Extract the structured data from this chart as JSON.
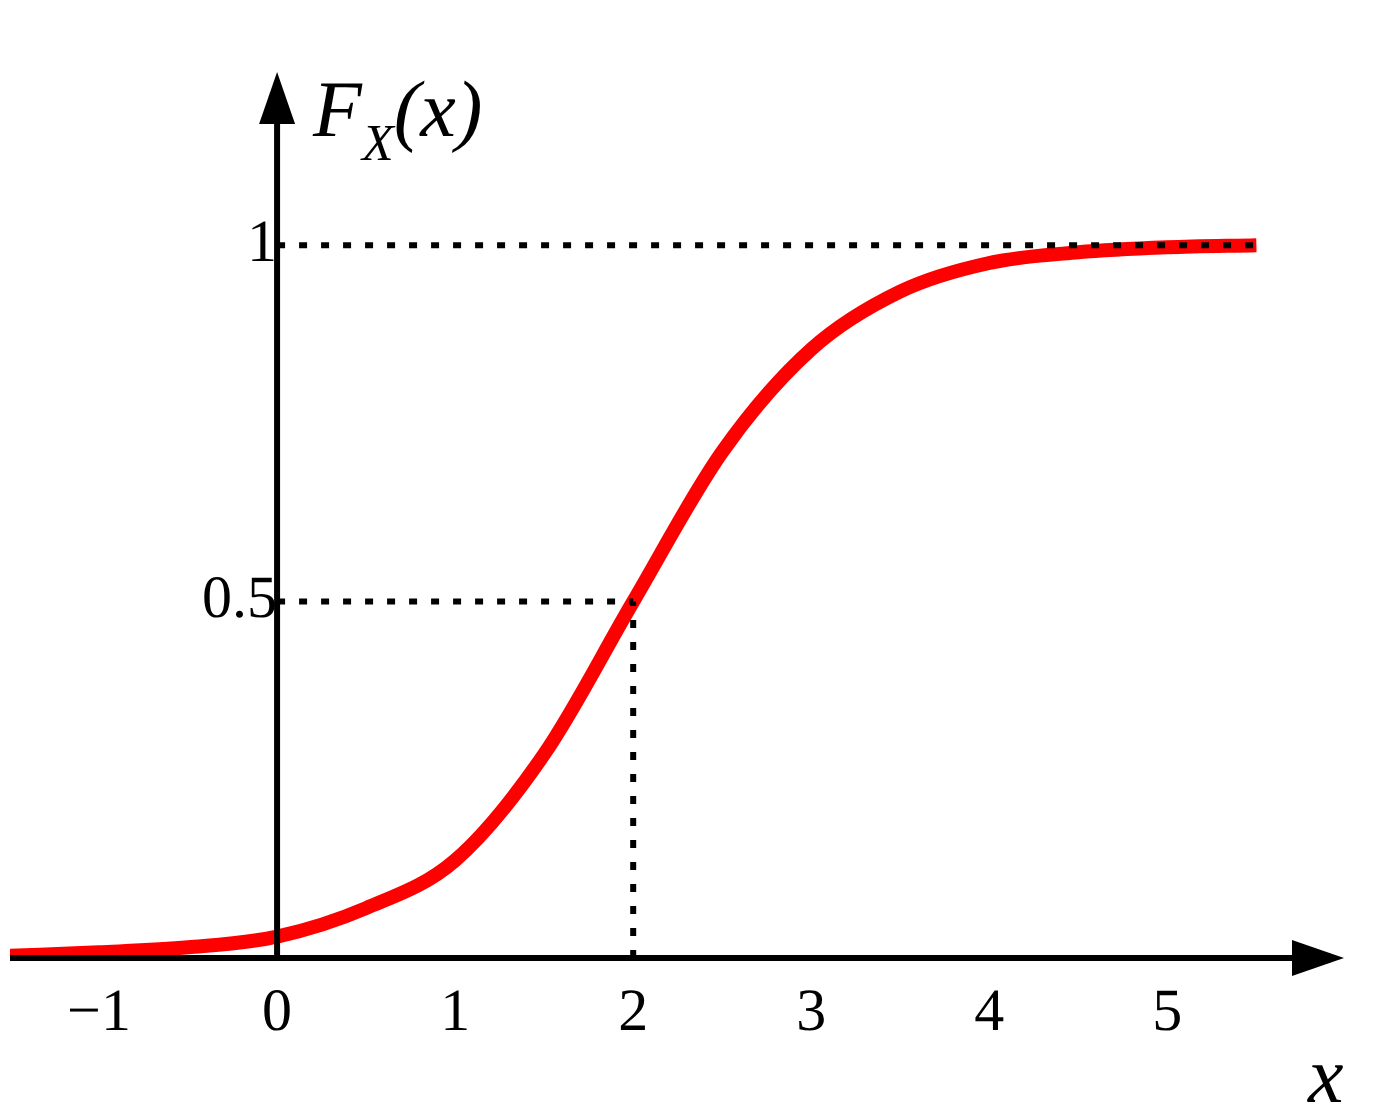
{
  "chart_data": {
    "type": "line",
    "xlabel": "x",
    "ylabel": "F$_{X}$(x)",
    "x": [
      -1.5,
      -1,
      -0.5,
      0,
      0.5,
      1,
      1.5,
      2,
      2.5,
      3,
      3.5,
      4,
      4.5,
      5,
      5.5
    ],
    "series": [
      {
        "color": "#ff0000",
        "values": [
          0.003,
          0.008,
          0.015,
          0.03,
          0.07,
          0.137,
          0.286,
          0.5,
          0.71,
          0.854,
          0.935,
          0.975,
          0.99,
          0.997,
          1
        ]
      }
    ],
    "xlim": [
      -1.5,
      5.7
    ],
    "ylim": [
      0,
      1.17
    ],
    "xticks": [
      -1,
      0,
      1,
      2,
      3,
      4,
      5
    ],
    "yticks": [
      0.5,
      1
    ],
    "ref_lines": [
      {
        "axis": "y",
        "value": 1,
        "line_style": "dotted"
      },
      {
        "axis": "y",
        "value": 0.5,
        "line_style": "dotted"
      },
      {
        "axis": "x",
        "value": 2,
        "line_style": "dotted"
      }
    ],
    "grid": false,
    "legend": false,
    "marker": "none",
    "line_style": "solid"
  }
}
